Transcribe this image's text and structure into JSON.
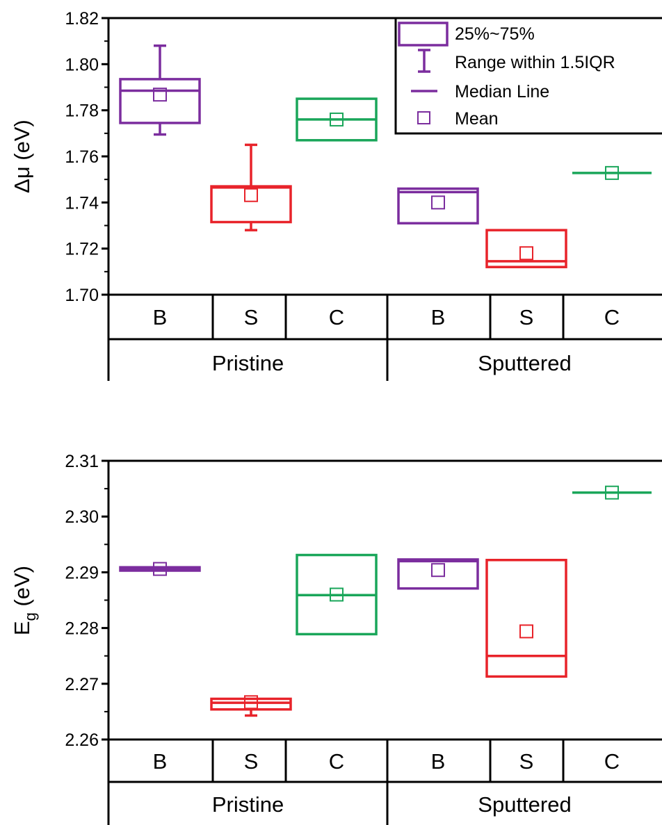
{
  "chart_data": [
    {
      "type": "box",
      "ylabel": "Δμ (eV)",
      "ylim": [
        1.7,
        1.82
      ],
      "yticks": [
        "1.70",
        "1.72",
        "1.74",
        "1.76",
        "1.78",
        "1.80",
        "1.82"
      ],
      "categories": [
        "B",
        "S",
        "C",
        "B",
        "S",
        "C"
      ],
      "groups": [
        "Pristine",
        "Sputtered"
      ],
      "colors": {
        "B": "#7b2d9e",
        "S": "#e8232a",
        "C": "#1aa65a"
      },
      "legend": {
        "position": "top-right",
        "entries": [
          "25%~75%",
          "Range within 1.5IQR",
          "Median Line",
          "Mean"
        ]
      },
      "boxes": [
        {
          "group": "Pristine",
          "category": "B",
          "q1": 1.7745,
          "median": 1.7885,
          "q3": 1.7935,
          "mean": 1.7868,
          "whisker_low": 1.7695,
          "whisker_high": 1.808
        },
        {
          "group": "Pristine",
          "category": "S",
          "q1": 1.7315,
          "median": 1.7465,
          "q3": 1.747,
          "mean": 1.7432,
          "whisker_low": 1.728,
          "whisker_high": 1.765
        },
        {
          "group": "Pristine",
          "category": "C",
          "q1": 1.767,
          "median": 1.776,
          "q3": 1.785,
          "mean": 1.776,
          "whisker_low": null,
          "whisker_high": null
        },
        {
          "group": "Sputtered",
          "category": "B",
          "q1": 1.731,
          "median": 1.7445,
          "q3": 1.746,
          "mean": 1.74,
          "whisker_low": null,
          "whisker_high": null
        },
        {
          "group": "Sputtered",
          "category": "S",
          "q1": 1.712,
          "median": 1.7145,
          "q3": 1.728,
          "mean": 1.718,
          "whisker_low": null,
          "whisker_high": null
        },
        {
          "group": "Sputtered",
          "category": "C",
          "q1": 1.7528,
          "median": 1.7528,
          "q3": 1.7528,
          "mean": 1.7528,
          "whisker_low": null,
          "whisker_high": null
        }
      ]
    },
    {
      "type": "box",
      "ylabel": "E",
      "ylabel_sub": "g",
      "ylabel_unit": " (eV)",
      "ylim": [
        2.26,
        2.31
      ],
      "yticks": [
        "2.26",
        "2.27",
        "2.28",
        "2.29",
        "2.30",
        "2.31"
      ],
      "categories": [
        "B",
        "S",
        "C",
        "B",
        "S",
        "C"
      ],
      "groups": [
        "Pristine",
        "Sputtered"
      ],
      "colors": {
        "B": "#7b2d9e",
        "S": "#e8232a",
        "C": "#1aa65a"
      },
      "boxes": [
        {
          "group": "Pristine",
          "category": "B",
          "q1": 2.2903,
          "median": 2.2906,
          "q3": 2.2909,
          "mean": 2.2906,
          "whisker_low": null,
          "whisker_high": null
        },
        {
          "group": "Pristine",
          "category": "S",
          "q1": 2.2654,
          "median": 2.2666,
          "q3": 2.2673,
          "mean": 2.2667,
          "whisker_low": 2.2643,
          "whisker_high": null
        },
        {
          "group": "Pristine",
          "category": "C",
          "q1": 2.2789,
          "median": 2.2859,
          "q3": 2.2931,
          "mean": 2.286,
          "whisker_low": null,
          "whisker_high": null
        },
        {
          "group": "Sputtered",
          "category": "B",
          "q1": 2.2871,
          "median": 2.292,
          "q3": 2.2923,
          "mean": 2.2904,
          "whisker_low": null,
          "whisker_high": null
        },
        {
          "group": "Sputtered",
          "category": "S",
          "q1": 2.2713,
          "median": 2.275,
          "q3": 2.2922,
          "mean": 2.2794,
          "whisker_low": null,
          "whisker_high": null
        },
        {
          "group": "Sputtered",
          "category": "C",
          "q1": 2.3043,
          "median": 2.3043,
          "q3": 2.3043,
          "mean": 2.3043,
          "whisker_low": null,
          "whisker_high": null
        }
      ]
    }
  ]
}
